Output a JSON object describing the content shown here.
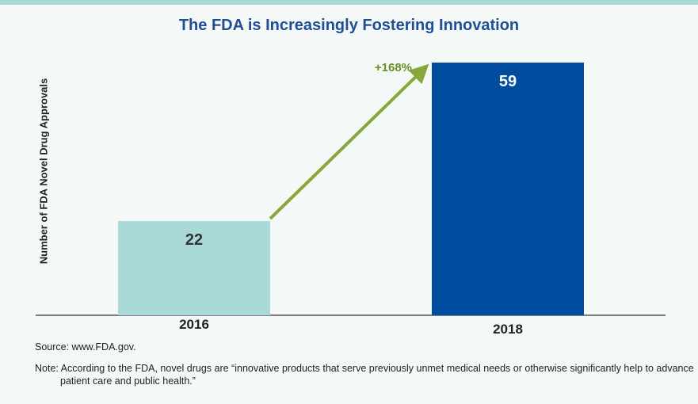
{
  "title": "The FDA is Increasingly Fostering Innovation",
  "chart_data": {
    "type": "bar",
    "categories": [
      "2016",
      "2018"
    ],
    "values": [
      22,
      59
    ],
    "title": "The FDA is Increasingly Fostering Innovation",
    "xlabel": "",
    "ylabel": "Number of FDA Novel Drug Approvals",
    "ylim": [
      0,
      59
    ],
    "grid": false,
    "bar_colors": [
      "#a9dad8",
      "#004c9f"
    ],
    "value_label_colors": [
      "#333333",
      "#ffffff"
    ],
    "annotation": {
      "text": "+168%",
      "from": "2016",
      "to": "2018",
      "color": "#86a83a"
    }
  },
  "source": "Source: www.FDA.gov.",
  "note": "Note: According to the FDA, novel drugs are “innovative products that serve previously unmet medical needs or otherwise significantly help to advance patient care and public health.”"
}
